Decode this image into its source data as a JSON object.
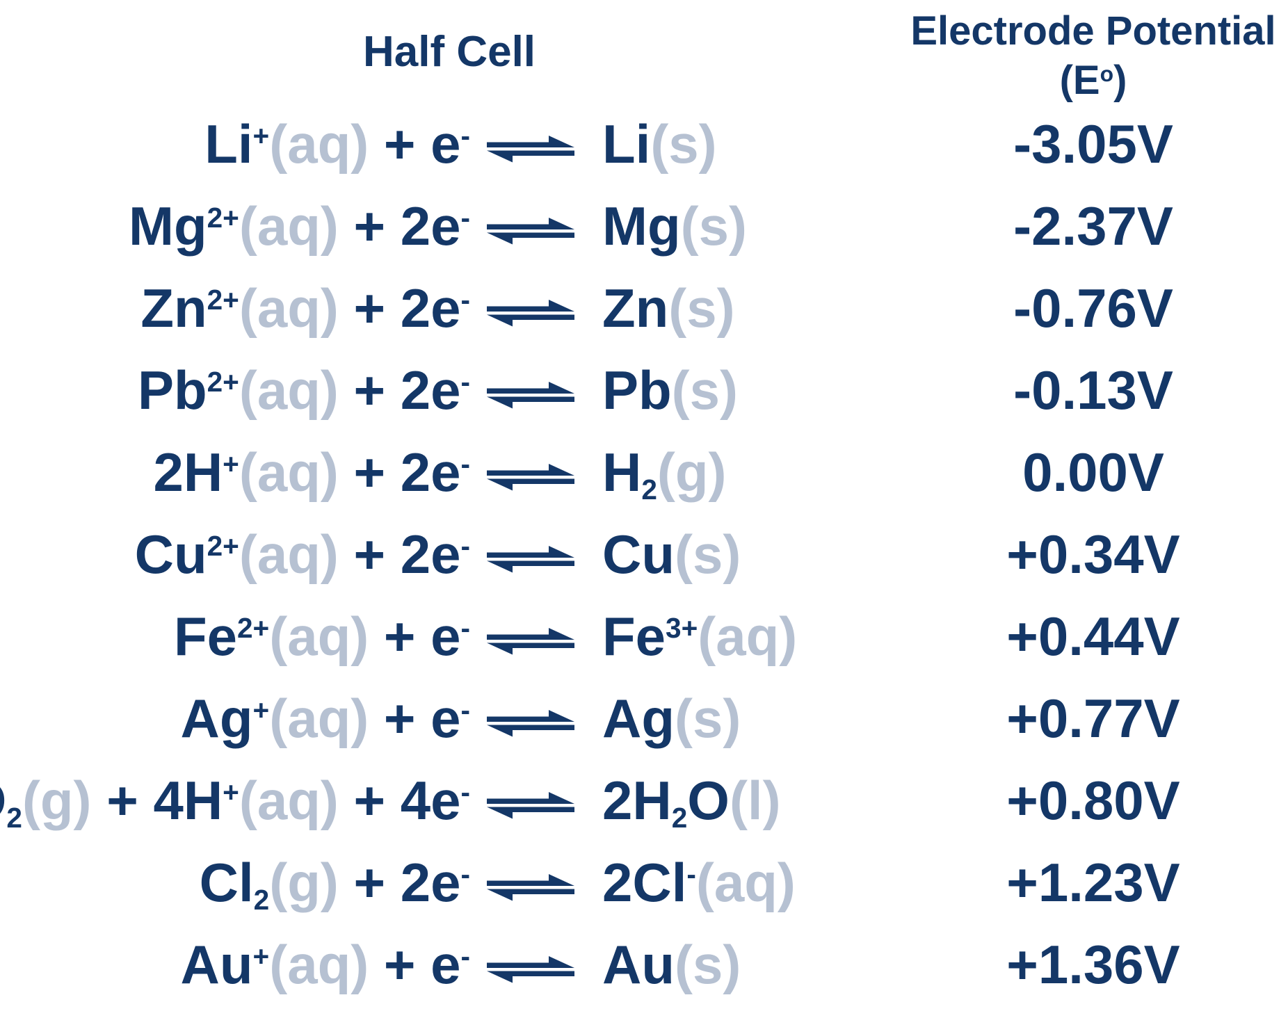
{
  "colors": {
    "dark_navy": "#143767",
    "light_blue_gray": "#b6c1d2"
  },
  "header": {
    "half_cell": "Half Cell",
    "potential_title": "Electrode Potential",
    "potential_symbol_open": "(E",
    "potential_symbol_sup": "o",
    "potential_symbol_close": ")"
  },
  "rows": [
    {
      "reactant": [
        [
          "Li",
          "n",
          "d"
        ],
        [
          "+",
          "sup",
          "d"
        ],
        [
          "(aq)",
          "n",
          "l"
        ],
        [
          " + e",
          "n",
          "d"
        ],
        [
          "-",
          "sup",
          "d"
        ]
      ],
      "product": [
        [
          "Li",
          "n",
          "d"
        ],
        [
          "(s)",
          "n",
          "l"
        ]
      ],
      "potential": "-3.05V"
    },
    {
      "reactant": [
        [
          "Mg",
          "n",
          "d"
        ],
        [
          "2+",
          "sup",
          "d"
        ],
        [
          "(aq)",
          "n",
          "l"
        ],
        [
          " + 2e",
          "n",
          "d"
        ],
        [
          "-",
          "sup",
          "d"
        ]
      ],
      "product": [
        [
          "Mg",
          "n",
          "d"
        ],
        [
          "(s)",
          "n",
          "l"
        ]
      ],
      "potential": "-2.37V"
    },
    {
      "reactant": [
        [
          "Zn",
          "n",
          "d"
        ],
        [
          "2+",
          "sup",
          "d"
        ],
        [
          "(aq)",
          "n",
          "l"
        ],
        [
          " + 2e",
          "n",
          "d"
        ],
        [
          "-",
          "sup",
          "d"
        ]
      ],
      "product": [
        [
          "Zn",
          "n",
          "d"
        ],
        [
          "(s)",
          "n",
          "l"
        ]
      ],
      "potential": "-0.76V"
    },
    {
      "reactant": [
        [
          "Pb",
          "n",
          "d"
        ],
        [
          "2+",
          "sup",
          "d"
        ],
        [
          "(aq)",
          "n",
          "l"
        ],
        [
          " + 2e",
          "n",
          "d"
        ],
        [
          "-",
          "sup",
          "d"
        ]
      ],
      "product": [
        [
          "Pb",
          "n",
          "d"
        ],
        [
          "(s)",
          "n",
          "l"
        ]
      ],
      "potential": "-0.13V"
    },
    {
      "reactant": [
        [
          "2H",
          "n",
          "d"
        ],
        [
          "+",
          "sup",
          "d"
        ],
        [
          "(aq)",
          "n",
          "l"
        ],
        [
          " + 2e",
          "n",
          "d"
        ],
        [
          "-",
          "sup",
          "d"
        ]
      ],
      "product": [
        [
          "H",
          "n",
          "d"
        ],
        [
          "2",
          "sub",
          "d"
        ],
        [
          "(g)",
          "n",
          "l"
        ]
      ],
      "potential": "0.00V"
    },
    {
      "reactant": [
        [
          "Cu",
          "n",
          "d"
        ],
        [
          "2+",
          "sup",
          "d"
        ],
        [
          "(aq)",
          "n",
          "l"
        ],
        [
          " + 2e",
          "n",
          "d"
        ],
        [
          "-",
          "sup",
          "d"
        ]
      ],
      "product": [
        [
          "Cu",
          "n",
          "d"
        ],
        [
          "(s)",
          "n",
          "l"
        ]
      ],
      "potential": "+0.34V"
    },
    {
      "reactant": [
        [
          "Fe",
          "n",
          "d"
        ],
        [
          "2+",
          "sup",
          "d"
        ],
        [
          "(aq)",
          "n",
          "l"
        ],
        [
          " + e",
          "n",
          "d"
        ],
        [
          "-",
          "sup",
          "d"
        ]
      ],
      "product": [
        [
          "Fe",
          "n",
          "d"
        ],
        [
          "3+",
          "sup",
          "d"
        ],
        [
          "(aq)",
          "n",
          "l"
        ]
      ],
      "potential": "+0.44V"
    },
    {
      "reactant": [
        [
          "Ag",
          "n",
          "d"
        ],
        [
          "+",
          "sup",
          "d"
        ],
        [
          "(aq)",
          "n",
          "l"
        ],
        [
          " + e",
          "n",
          "d"
        ],
        [
          "-",
          "sup",
          "d"
        ]
      ],
      "product": [
        [
          "Ag",
          "n",
          "d"
        ],
        [
          "(s)",
          "n",
          "l"
        ]
      ],
      "potential": "+0.77V"
    },
    {
      "reactant": [
        [
          "O",
          "n",
          "d"
        ],
        [
          "2",
          "sub",
          "d"
        ],
        [
          "(g)",
          "n",
          "l"
        ],
        [
          " + 4H",
          "n",
          "d"
        ],
        [
          "+",
          "sup",
          "d"
        ],
        [
          "(aq)",
          "n",
          "l"
        ],
        [
          " + 4e",
          "n",
          "d"
        ],
        [
          "-",
          "sup",
          "d"
        ]
      ],
      "product": [
        [
          "2H",
          "n",
          "d"
        ],
        [
          "2",
          "sub",
          "d"
        ],
        [
          "O",
          "n",
          "d"
        ],
        [
          "(l)",
          "n",
          "l"
        ]
      ],
      "potential": "+0.80V"
    },
    {
      "reactant": [
        [
          "Cl",
          "n",
          "d"
        ],
        [
          "2",
          "sub",
          "d"
        ],
        [
          "(g)",
          "n",
          "l"
        ],
        [
          " + 2e",
          "n",
          "d"
        ],
        [
          "-",
          "sup",
          "d"
        ]
      ],
      "product": [
        [
          "2Cl",
          "n",
          "d"
        ],
        [
          "-",
          "sup",
          "d"
        ],
        [
          "(aq)",
          "n",
          "l"
        ]
      ],
      "potential": "+1.23V"
    },
    {
      "reactant": [
        [
          "Au",
          "n",
          "d"
        ],
        [
          "+",
          "sup",
          "d"
        ],
        [
          "(aq)",
          "n",
          "l"
        ],
        [
          " + e",
          "n",
          "d"
        ],
        [
          "-",
          "sup",
          "d"
        ]
      ],
      "product": [
        [
          "Au",
          "n",
          "d"
        ],
        [
          "(s)",
          "n",
          "l"
        ]
      ],
      "potential": "+1.36V"
    }
  ]
}
